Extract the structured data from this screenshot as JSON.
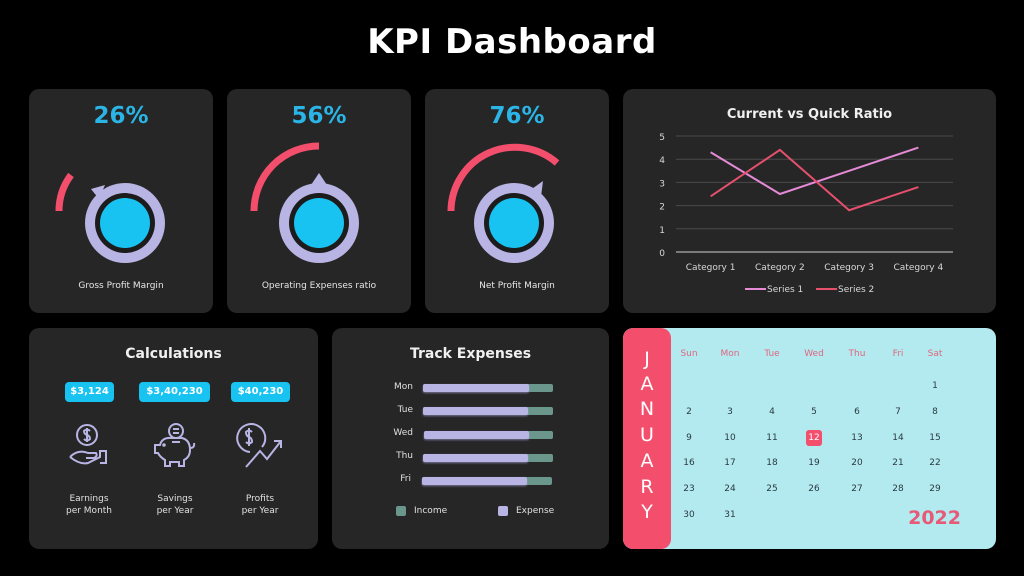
{
  "page": {
    "title": "KPI Dashboard"
  },
  "colors": {
    "background": "#000000",
    "card": "#262626",
    "accent_blue": "#2bb5e6",
    "cyan": "#18c3f2",
    "pink": "#f34f6d",
    "lavender": "#b8b4e4",
    "teal": "#6b968c",
    "calendar_bg": "#b3eaf0"
  },
  "gauges": [
    {
      "value": "26%",
      "percent": 26,
      "label": "Gross Profit Margin"
    },
    {
      "value": "56%",
      "percent": 56,
      "label": "Operating Expenses ratio"
    },
    {
      "value": "76%",
      "percent": 76,
      "label": "Net Profit Margin"
    }
  ],
  "line_chart": {
    "title": "Current vs Quick Ratio",
    "y_ticks": [
      "0",
      "1",
      "2",
      "3",
      "4",
      "5"
    ],
    "categories": [
      "Category 1",
      "Category 2",
      "Category 3",
      "Category 4"
    ],
    "legend": [
      "Series 1",
      "Series 2"
    ]
  },
  "chart_data": {
    "type": "line",
    "title": "Current vs Quick Ratio",
    "categories": [
      "Category 1",
      "Category 2",
      "Category 3",
      "Category 4"
    ],
    "series": [
      {
        "name": "Series 1",
        "values": [
          4.3,
          2.5,
          3.5,
          4.5
        ],
        "color": "#e58ad6"
      },
      {
        "name": "Series 2",
        "values": [
          2.4,
          4.4,
          1.8,
          2.8
        ],
        "color": "#e6506d"
      }
    ],
    "xlabel": "",
    "ylabel": "",
    "ylim": [
      0,
      5
    ],
    "grid": true,
    "legend_position": "bottom"
  },
  "calculations": {
    "title": "Calculations",
    "items": [
      {
        "value": "$3,124",
        "label_line1": "Earnings",
        "label_line2": "per Month",
        "icon": "hand-coin-icon"
      },
      {
        "value": "$3,40,230",
        "label_line1": "Savings",
        "label_line2": "per Year",
        "icon": "piggy-bank-icon"
      },
      {
        "value": "$40,230",
        "label_line1": "Profits",
        "label_line2": "per Year",
        "icon": "dollar-growth-icon"
      }
    ]
  },
  "expenses": {
    "title": "Track Expenses",
    "rows": [
      {
        "day": "Mon",
        "income": 100,
        "expense": 81
      },
      {
        "day": "Tue",
        "income": 100,
        "expense": 81
      },
      {
        "day": "Wed",
        "income": 100,
        "expense": 81
      },
      {
        "day": "Thu",
        "income": 100,
        "expense": 81
      },
      {
        "day": "Fri",
        "income": 100,
        "expense": 81
      }
    ],
    "legend": {
      "income": "Income",
      "expense": "Expense"
    }
  },
  "calendar": {
    "month_letters": [
      "J",
      "A",
      "N",
      "U",
      "A",
      "R",
      "Y"
    ],
    "weekdays": [
      "Sun",
      "Mon",
      "Tue",
      "Wed",
      "Thu",
      "Fri",
      "Sat"
    ],
    "weeks": [
      [
        "",
        "",
        "",
        "",
        "",
        "",
        "1"
      ],
      [
        "2",
        "3",
        "4",
        "5",
        "6",
        "7",
        "8"
      ],
      [
        "9",
        "10",
        "11",
        "12",
        "13",
        "14",
        "15"
      ],
      [
        "16",
        "17",
        "18",
        "19",
        "20",
        "21",
        "22"
      ],
      [
        "23",
        "24",
        "25",
        "26",
        "27",
        "28",
        "29"
      ],
      [
        "30",
        "31",
        "",
        "",
        "",
        "",
        ""
      ]
    ],
    "highlighted_day": "12",
    "year": "2022"
  }
}
